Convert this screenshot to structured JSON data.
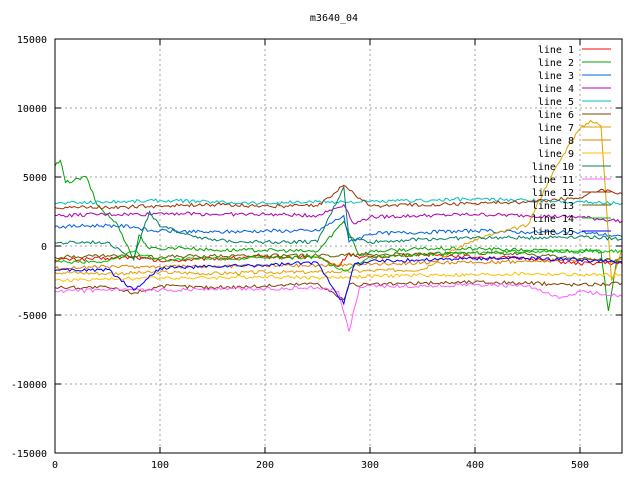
{
  "chart_data": {
    "type": "line",
    "title": "m3640_04",
    "xlabel": "",
    "ylabel": "",
    "xlim": [
      0,
      540
    ],
    "ylim": [
      -15000,
      15000
    ],
    "grid": true,
    "legend_position": "top-right",
    "x_ticks": [
      0,
      100,
      200,
      300,
      400,
      500
    ],
    "y_ticks": [
      -15000,
      -10000,
      -5000,
      0,
      5000,
      10000,
      15000
    ],
    "x_tick_labels": [
      "0",
      "100",
      "200",
      "300",
      "400",
      "500"
    ],
    "y_tick_labels": [
      "-15000",
      "-10000",
      "-5000",
      "0",
      "5000",
      "10000",
      "15000"
    ],
    "series": [
      {
        "name": "line 1",
        "color": "#ff0000",
        "x": [
          0,
          50,
          75,
          100,
          150,
          200,
          250,
          270,
          280,
          290,
          300,
          350,
          400,
          450,
          500,
          520,
          540
        ],
        "y": [
          -1000,
          -900,
          -800,
          -1100,
          -900,
          -800,
          -800,
          -1500,
          -500,
          -900,
          -800,
          -600,
          -800,
          -900,
          -1300,
          -1200,
          -1300
        ]
      },
      {
        "name": "line 2",
        "color": "#00a000",
        "x": [
          0,
          5,
          10,
          30,
          40,
          60,
          75,
          80,
          90,
          100,
          120,
          150,
          200,
          250,
          275,
          290,
          300,
          350,
          400,
          450,
          500,
          520,
          527,
          535,
          540
        ],
        "y": [
          5800,
          6200,
          4600,
          5000,
          3000,
          1500,
          -1000,
          800,
          -200,
          -200,
          -100,
          -300,
          -300,
          -400,
          1800,
          -700,
          -400,
          -200,
          -200,
          -300,
          -400,
          -400,
          -4700,
          -1000,
          -800
        ]
      },
      {
        "name": "line 3",
        "color": "#0060e0",
        "x": [
          0,
          50,
          75,
          90,
          100,
          150,
          200,
          250,
          275,
          280,
          300,
          350,
          400,
          450,
          500,
          540
        ],
        "y": [
          1400,
          1500,
          1400,
          1100,
          1100,
          1000,
          1100,
          1100,
          2200,
          300,
          900,
          1000,
          1100,
          1000,
          1000,
          700
        ]
      },
      {
        "name": "line 4",
        "color": "#b000b0",
        "x": [
          0,
          50,
          90,
          100,
          150,
          200,
          250,
          275,
          285,
          300,
          350,
          400,
          450,
          500,
          540
        ],
        "y": [
          2200,
          2300,
          2300,
          2400,
          2300,
          2300,
          2200,
          3000,
          1600,
          2100,
          2200,
          2300,
          2200,
          2100,
          1800
        ]
      },
      {
        "name": "line 5",
        "color": "#00c0c0",
        "x": [
          0,
          50,
          100,
          150,
          200,
          250,
          300,
          350,
          400,
          450,
          500,
          540
        ],
        "y": [
          3100,
          3200,
          3300,
          3200,
          3100,
          3200,
          3200,
          3300,
          3400,
          3300,
          3200,
          3100
        ]
      },
      {
        "name": "line 6",
        "color": "#804000",
        "x": [
          0,
          50,
          75,
          100,
          150,
          200,
          250,
          275,
          280,
          300,
          350,
          400,
          450,
          500,
          540
        ],
        "y": [
          -3000,
          -3000,
          -3400,
          -2900,
          -3000,
          -2900,
          -2700,
          -3900,
          -2800,
          -2800,
          -2700,
          -2600,
          -2700,
          -2800,
          -2700
        ]
      },
      {
        "name": "line 7",
        "color": "#e0a000",
        "x": [
          0,
          50,
          100,
          150,
          200,
          250,
          300,
          350,
          380,
          400,
          450,
          470,
          490,
          500,
          510,
          520,
          530,
          540
        ],
        "y": [
          -1900,
          -2000,
          -1900,
          -2000,
          -1900,
          -1900,
          -1800,
          -1700,
          -300,
          500,
          1500,
          4700,
          7400,
          8500,
          9100,
          8700,
          -2500,
          -200
        ]
      },
      {
        "name": "line 8",
        "color": "#e08000",
        "x": [
          0,
          50,
          100,
          150,
          200,
          250,
          300,
          350,
          400,
          450,
          500,
          540
        ],
        "y": [
          -1600,
          -1500,
          -1500,
          -1500,
          -1400,
          -1400,
          -1300,
          -1200,
          -1200,
          -1100,
          -1000,
          -1000
        ]
      },
      {
        "name": "line 9",
        "color": "#ffc000",
        "x": [
          0,
          50,
          100,
          150,
          200,
          250,
          300,
          350,
          400,
          450,
          500,
          540
        ],
        "y": [
          -2500,
          -2400,
          -2300,
          -2300,
          -2200,
          -2300,
          -2200,
          -2100,
          -2100,
          -2000,
          -2100,
          -2100
        ]
      },
      {
        "name": "line 10",
        "color": "#008060",
        "x": [
          0,
          50,
          75,
          90,
          100,
          150,
          200,
          250,
          275,
          280,
          300,
          350,
          400,
          450,
          500,
          540
        ],
        "y": [
          200,
          300,
          -900,
          2500,
          1400,
          400,
          300,
          300,
          4300,
          600,
          300,
          500,
          600,
          600,
          700,
          500
        ]
      },
      {
        "name": "line 11",
        "color": "#ff60ff",
        "x": [
          0,
          50,
          100,
          150,
          200,
          250,
          270,
          280,
          290,
          300,
          350,
          400,
          450,
          480,
          500,
          540
        ],
        "y": [
          -3300,
          -3200,
          -3200,
          -3100,
          -3100,
          -3000,
          -3300,
          -6200,
          -3000,
          -2900,
          -2900,
          -2800,
          -2900,
          -3800,
          -3300,
          -3600
        ]
      },
      {
        "name": "line 12",
        "color": "#a03000",
        "x": [
          0,
          50,
          100,
          150,
          200,
          250,
          275,
          300,
          350,
          400,
          450,
          500,
          520,
          540
        ],
        "y": [
          2800,
          2800,
          2900,
          3000,
          2900,
          2900,
          4400,
          2900,
          3000,
          3100,
          3200,
          3500,
          4100,
          3800
        ]
      },
      {
        "name": "line 13",
        "color": "#606000",
        "x": [
          0,
          50,
          100,
          150,
          200,
          250,
          300,
          350,
          400,
          450,
          500,
          540
        ],
        "y": [
          -800,
          -700,
          -800,
          -700,
          -700,
          -700,
          -600,
          -600,
          -500,
          -600,
          -900,
          -1100
        ]
      },
      {
        "name": "line 14",
        "color": "#00c000",
        "x": [
          0,
          50,
          75,
          100,
          150,
          200,
          250,
          275,
          300,
          350,
          400,
          450,
          500,
          540
        ],
        "y": [
          -1200,
          -1100,
          -400,
          -1000,
          -900,
          -900,
          -800,
          -1800,
          -800,
          -600,
          -500,
          -400,
          -300,
          -400
        ]
      },
      {
        "name": "line 15",
        "color": "#0000ff",
        "x": [
          0,
          50,
          75,
          100,
          150,
          200,
          250,
          275,
          285,
          300,
          350,
          400,
          450,
          500,
          540
        ],
        "y": [
          -1800,
          -1700,
          -3200,
          -1600,
          -1500,
          -1400,
          -1200,
          -4200,
          -1300,
          -1100,
          -1000,
          -900,
          -900,
          -1000,
          -1200
        ]
      }
    ]
  }
}
